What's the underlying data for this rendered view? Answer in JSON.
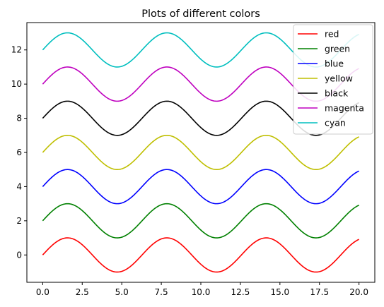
{
  "chart_data": {
    "type": "line",
    "title": "Plots of different colors",
    "xlabel": "",
    "ylabel": "",
    "xlim": [
      -1,
      21
    ],
    "ylim": [
      -1.6,
      13.6
    ],
    "grid": false,
    "legend_position": "top-right",
    "x_ticks": [
      "0.0",
      "2.5",
      "5.0",
      "7.5",
      "10.0",
      "12.5",
      "15.0",
      "17.5",
      "20.0"
    ],
    "y_ticks": [
      "0",
      "2",
      "4",
      "6",
      "8",
      "10",
      "12"
    ],
    "function": "y = sin(x) + offset, x from 0 to 20",
    "series": [
      {
        "name": "red",
        "color": "#ff0000",
        "offset": 0
      },
      {
        "name": "green",
        "color": "#008000",
        "offset": 2
      },
      {
        "name": "blue",
        "color": "#0000ff",
        "offset": 4
      },
      {
        "name": "yellow",
        "color": "#bfbf00",
        "offset": 6
      },
      {
        "name": "black",
        "color": "#000000",
        "offset": 8
      },
      {
        "name": "magenta",
        "color": "#bf00bf",
        "offset": 10
      },
      {
        "name": "cyan",
        "color": "#00bfbf",
        "offset": 12
      }
    ]
  }
}
